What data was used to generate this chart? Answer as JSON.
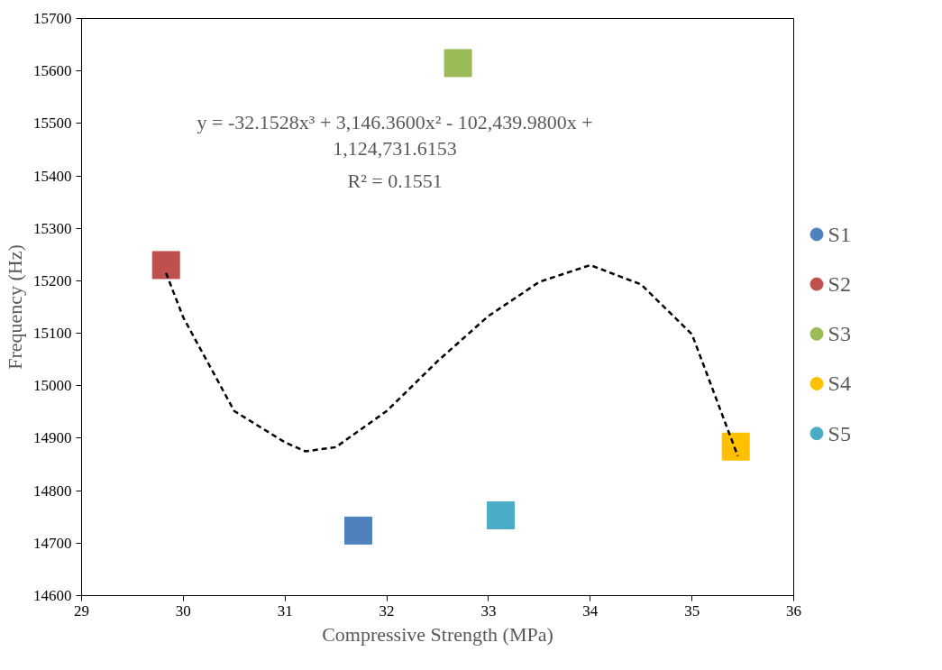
{
  "chart_data": {
    "type": "scatter",
    "xlabel": "Compressive Strength (MPa)",
    "ylabel": "Frequency (Hz)",
    "xlim": [
      29,
      36
    ],
    "xticks": [
      29,
      30,
      31,
      32,
      33,
      34,
      35,
      36
    ],
    "ylim": [
      14600,
      15700
    ],
    "yticks": [
      14600,
      14700,
      14800,
      14900,
      15000,
      15100,
      15200,
      15300,
      15400,
      15500,
      15600,
      15700
    ],
    "grid": false,
    "legend": "right",
    "marker": "square",
    "series": [
      {
        "name": "S1",
        "color": "#4f81bd",
        "x": [
          31.72
        ],
        "values": [
          14724
        ]
      },
      {
        "name": "S2",
        "color": "#c0504d",
        "x": [
          29.83
        ],
        "values": [
          15230
        ]
      },
      {
        "name": "S3",
        "color": "#9bbb59",
        "x": [
          32.7
        ],
        "values": [
          15615
        ]
      },
      {
        "name": "S4",
        "color": "#ffc000",
        "x": [
          35.43
        ],
        "values": [
          14884
        ]
      },
      {
        "name": "S5",
        "color": "#4bacc6",
        "x": [
          33.12
        ],
        "values": [
          14753
        ]
      },
      {
        "type": "line",
        "color": "#000000",
        "line_style": "dashed",
        "marker": "none",
        "x": [
          29.83,
          30,
          30.5,
          31,
          31.2,
          31.5,
          32,
          32.5,
          33,
          33.5,
          34,
          34.5,
          35,
          35.45
        ],
        "values": [
          15215,
          15130,
          14952,
          14892,
          14875,
          14883,
          14952,
          15047,
          15133,
          15198,
          15230,
          15193,
          15098,
          14866
        ]
      }
    ],
    "annotations": [
      "y = -32.1528x³ + 3,146.3600x² - 102,439.9800x +\n1,124,731.6153",
      "R² = 0.1551"
    ]
  }
}
